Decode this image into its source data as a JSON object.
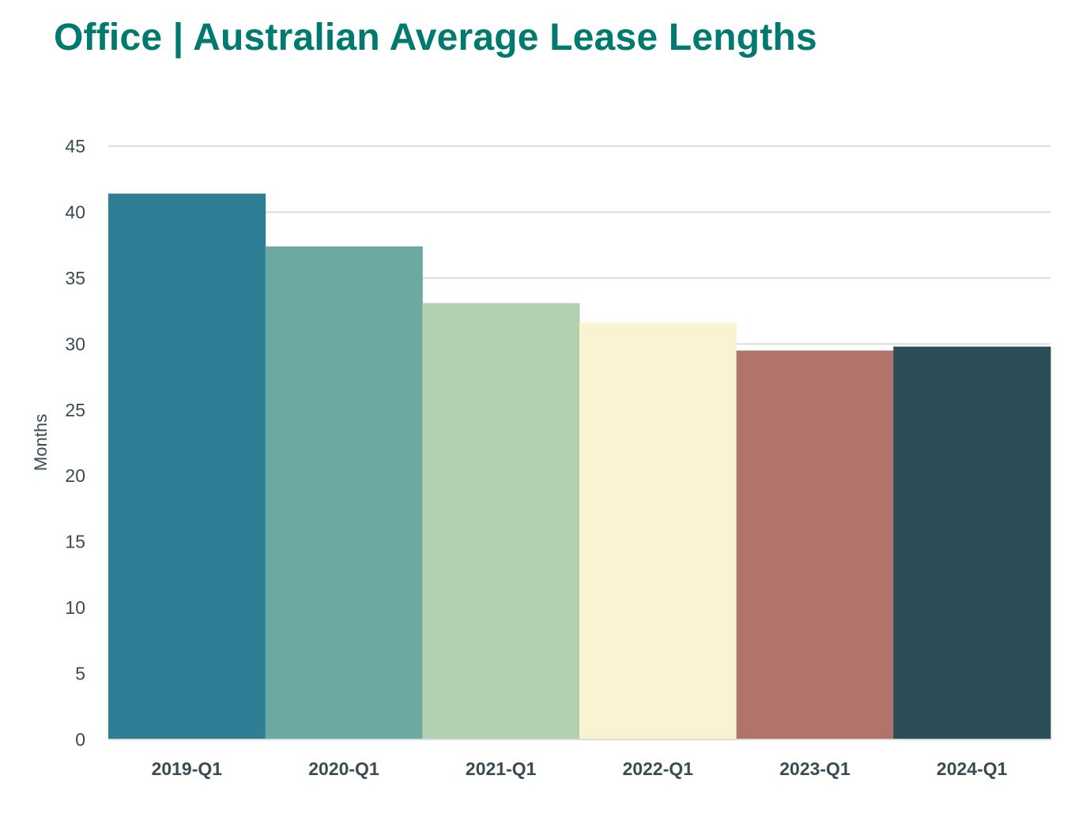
{
  "chart_data": {
    "type": "bar",
    "title": "Office | Australian Average Lease Lengths",
    "xlabel": "",
    "ylabel": "Months",
    "categories": [
      "2019-Q1",
      "2020-Q1",
      "2021-Q1",
      "2022-Q1",
      "2023-Q1",
      "2024-Q1"
    ],
    "values": [
      41.4,
      37.4,
      33.1,
      31.6,
      29.5,
      29.8
    ],
    "colors": [
      "#2e7f95",
      "#6ba9a2",
      "#b2d1b0",
      "#f9f3d2",
      "#b1746b",
      "#2c4e58"
    ],
    "ylim": [
      0,
      45
    ],
    "yticks": [
      0,
      5,
      10,
      15,
      20,
      25,
      30,
      35,
      40,
      45
    ],
    "grid": true,
    "legend": "none"
  },
  "style": {
    "title_color": "#007a6e",
    "grid_color": "#dcdcdc",
    "text_color": "#3b4b52"
  }
}
